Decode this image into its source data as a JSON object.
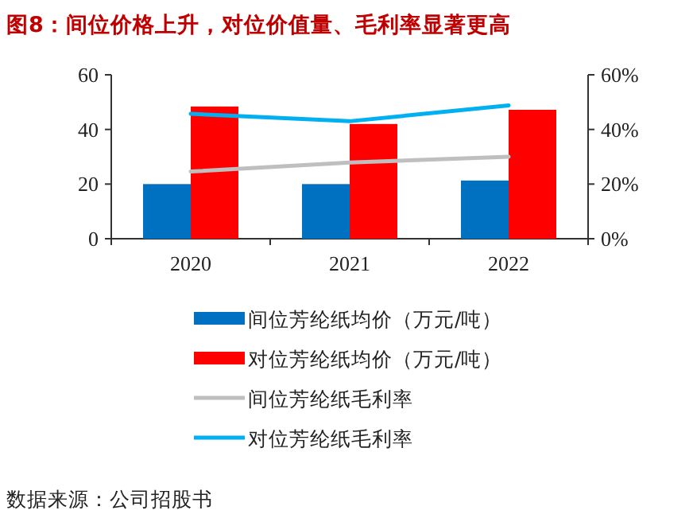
{
  "chart_data": {
    "type": "bar",
    "title": "图8：间位价格上升，对位价值量、毛利率显著更高",
    "categories": [
      "2020",
      "2021",
      "2022"
    ],
    "series": [
      {
        "name": "间位芳纶纸均价（万元/吨）",
        "color": "#0070c0",
        "values": [
          20,
          20,
          21.3
        ]
      },
      {
        "name": "对位芳纶纸均价（万元/吨）",
        "color": "#ff0000",
        "values": [
          48.4,
          42,
          47.2
        ]
      },
      {
        "name": "间位芳纶纸毛利率",
        "type": "line",
        "axis": "y2",
        "color": "#bfbfbf",
        "values": [
          24.6,
          27.9,
          30
        ]
      },
      {
        "name": "对位芳纶纸毛利率",
        "type": "line",
        "axis": "y2",
        "color": "#00b0f0",
        "values": [
          45.7,
          43,
          48.8
        ]
      }
    ],
    "ylim": [
      0,
      60
    ],
    "yticks": [
      0,
      20,
      40,
      60
    ],
    "y2lim": [
      0,
      60
    ],
    "y2ticks": [
      {
        "value": 0,
        "label": "0%"
      },
      {
        "value": 20,
        "label": "20%"
      },
      {
        "value": 40,
        "label": "40%"
      },
      {
        "value": 60,
        "label": "60%"
      }
    ],
    "legend": "bottom",
    "grid": false,
    "annotations": [
      "数据来源：公司招股书"
    ]
  }
}
